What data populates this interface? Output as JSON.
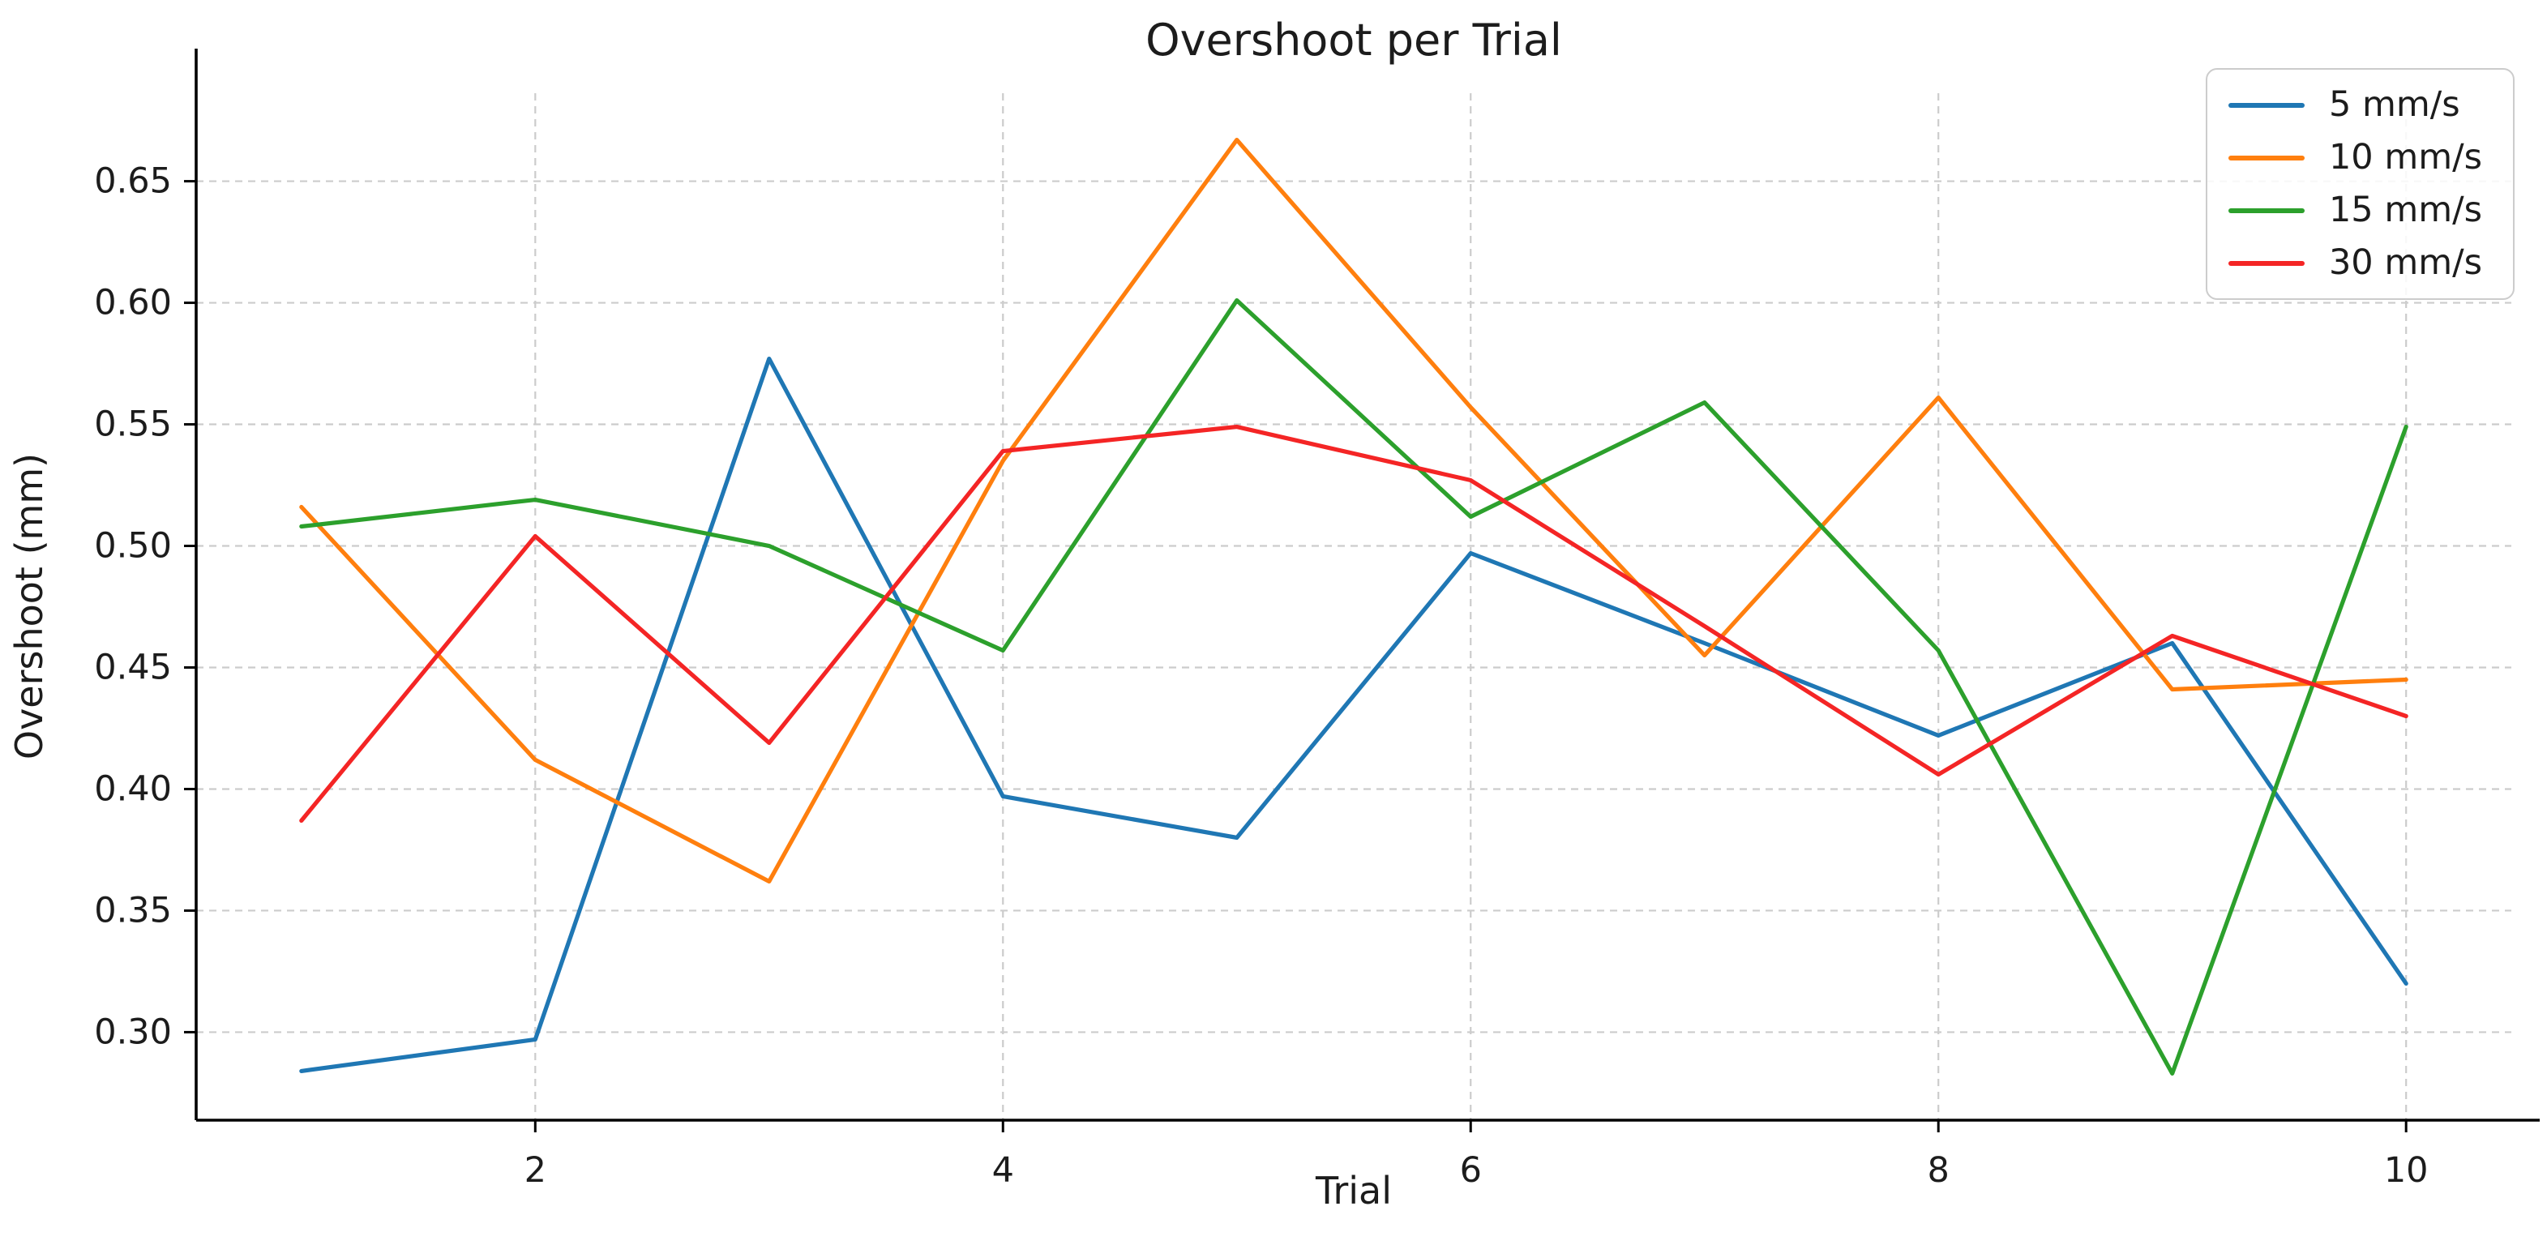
{
  "chart_data": {
    "type": "line",
    "title": "Overshoot per Trial",
    "xlabel": "Trial",
    "ylabel": "Overshoot (mm)",
    "x": [
      1,
      2,
      3,
      4,
      5,
      6,
      7,
      8,
      9,
      10
    ],
    "series": [
      {
        "name": "5 mm/s",
        "color": "#1f77b4",
        "values": [
          0.284,
          0.297,
          0.577,
          0.397,
          0.38,
          0.497,
          0.46,
          0.422,
          0.46,
          0.32
        ]
      },
      {
        "name": "10 mm/s",
        "color": "#ff7f0e",
        "values": [
          0.516,
          0.412,
          0.362,
          0.535,
          0.667,
          0.557,
          0.455,
          0.561,
          0.441,
          0.445
        ]
      },
      {
        "name": "15 mm/s",
        "color": "#2ca02c",
        "values": [
          0.508,
          0.519,
          0.5,
          0.457,
          0.601,
          0.512,
          0.559,
          0.457,
          0.283,
          0.549
        ]
      },
      {
        "name": "30 mm/s",
        "color": "#f42525",
        "values": [
          0.387,
          0.504,
          0.419,
          0.539,
          0.549,
          0.527,
          0.467,
          0.406,
          0.463,
          0.43
        ]
      }
    ],
    "xticks": [
      {
        "value": 2,
        "label": "2"
      },
      {
        "value": 4,
        "label": "4"
      },
      {
        "value": 6,
        "label": "6"
      },
      {
        "value": 8,
        "label": "8"
      },
      {
        "value": 10,
        "label": "10"
      }
    ],
    "yticks": [
      {
        "value": 0.3,
        "label": "0.30"
      },
      {
        "value": 0.35,
        "label": "0.35"
      },
      {
        "value": 0.4,
        "label": "0.40"
      },
      {
        "value": 0.45,
        "label": "0.45"
      },
      {
        "value": 0.5,
        "label": "0.50"
      },
      {
        "value": 0.55,
        "label": "0.55"
      },
      {
        "value": 0.6,
        "label": "0.60"
      },
      {
        "value": 0.65,
        "label": "0.65"
      }
    ],
    "xlim": [
      0.55,
      10.45
    ],
    "ylim": [
      0.2638,
      0.6862
    ],
    "grid": true,
    "legend_position": "upper right",
    "grid_color": "#cccccc",
    "spine_color": "#000000",
    "tick_text_color": "#1c1c1c"
  }
}
